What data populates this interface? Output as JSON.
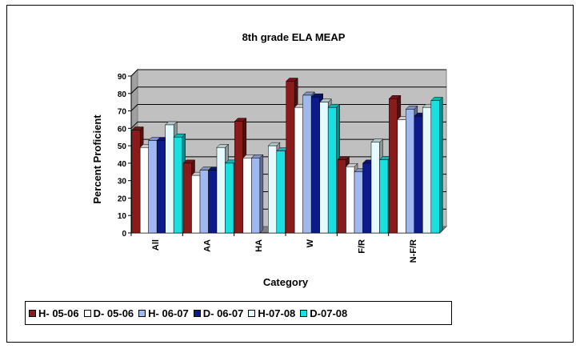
{
  "chart_data": {
    "type": "bar",
    "title": "8th grade ELA MEAP",
    "xlabel": "Category",
    "ylabel": "Percent Proficient",
    "ylim": [
      0,
      90
    ],
    "yticks": [
      0,
      10,
      20,
      30,
      40,
      50,
      60,
      70,
      80,
      90
    ],
    "categories": [
      "All",
      "AA",
      "HA",
      "W",
      "F/R",
      "N-F/R"
    ],
    "series": [
      {
        "name": "H- 05-06",
        "color": "#8b1a1a",
        "values": [
          59,
          40,
          64,
          87,
          42,
          77
        ]
      },
      {
        "name": "D- 05-06",
        "color": "#ffffff",
        "values": [
          49,
          33,
          43,
          72,
          38,
          65
        ]
      },
      {
        "name": "H- 06-07",
        "color": "#9fb8f0",
        "values": [
          53,
          36,
          43,
          79,
          35,
          71
        ]
      },
      {
        "name": "D- 06-07",
        "color": "#0c1a8c",
        "values": [
          53,
          36,
          0,
          78,
          40,
          67
        ]
      },
      {
        "name": "H-07-08",
        "color": "#e4fafd",
        "values": [
          62,
          49,
          50,
          75,
          52,
          72
        ]
      },
      {
        "name": "D-07-08",
        "color": "#19e0e0",
        "values": [
          55,
          40,
          47,
          72,
          42,
          76
        ]
      }
    ],
    "grid": true,
    "legend_position": "bottom-left",
    "plot_background": "#c0c0c0"
  }
}
